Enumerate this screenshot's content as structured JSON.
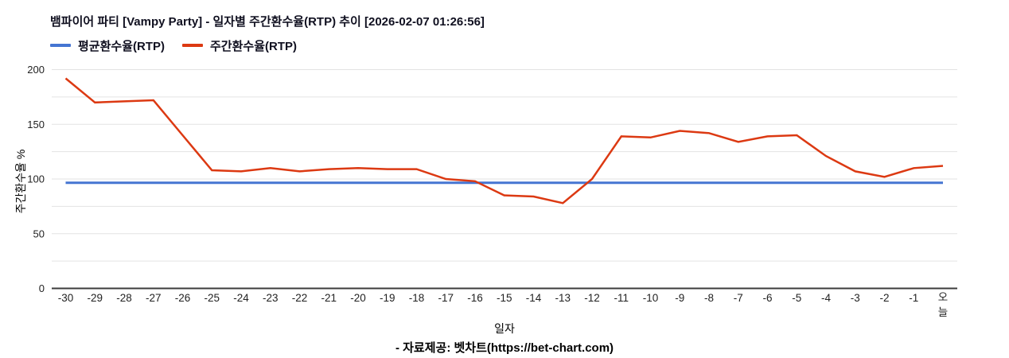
{
  "title": "뱀파이어 파티 [Vampy Party] - 일자별 주간환수율(RTP) 추이 [2026-02-07 01:26:56]",
  "legend": [
    {
      "label": "평균환수율(RTP)",
      "color": "#4575d2"
    },
    {
      "label": "주간환수율(RTP)",
      "color": "#dc3912"
    }
  ],
  "footer": "- 자료제공: 벳차트(https://bet-chart.com)",
  "chart_data": {
    "type": "line",
    "title": "뱀파이어 파티 [Vampy Party] - 일자별 주간환수율(RTP) 추이 [2026-02-07 01:26:56]",
    "xlabel": "일자",
    "ylabel": "주간환수율 %",
    "ylim": [
      0,
      200
    ],
    "yticks": [
      0,
      50,
      100,
      150,
      200
    ],
    "grid_step": 25,
    "grid": true,
    "legend_position": "top-left",
    "categories": [
      "-30",
      "-29",
      "-28",
      "-27",
      "-26",
      "-25",
      "-24",
      "-23",
      "-22",
      "-21",
      "-20",
      "-19",
      "-18",
      "-17",
      "-16",
      "-15",
      "-14",
      "-13",
      "-12",
      "-11",
      "-10",
      "-9",
      "-8",
      "-7",
      "-6",
      "-5",
      "-4",
      "-3",
      "-2",
      "-1",
      "오늘"
    ],
    "series": [
      {
        "name": "평균환수율(RTP)",
        "color": "#4575d2",
        "values": [
          96.5,
          96.5,
          96.5,
          96.5,
          96.5,
          96.5,
          96.5,
          96.5,
          96.5,
          96.5,
          96.5,
          96.5,
          96.5,
          96.5,
          96.5,
          96.5,
          96.5,
          96.5,
          96.5,
          96.5,
          96.5,
          96.5,
          96.5,
          96.5,
          96.5,
          96.5,
          96.5,
          96.5,
          96.5,
          96.5,
          96.5
        ]
      },
      {
        "name": "주간환수율(RTP)",
        "color": "#dc3912",
        "values": [
          192,
          170,
          171,
          172,
          140,
          108,
          107,
          110,
          107,
          109,
          110,
          109,
          109,
          100,
          98,
          85,
          84,
          78,
          100,
          139,
          138,
          144,
          142,
          134,
          139,
          140,
          121,
          107,
          102,
          110,
          112
        ]
      }
    ]
  }
}
